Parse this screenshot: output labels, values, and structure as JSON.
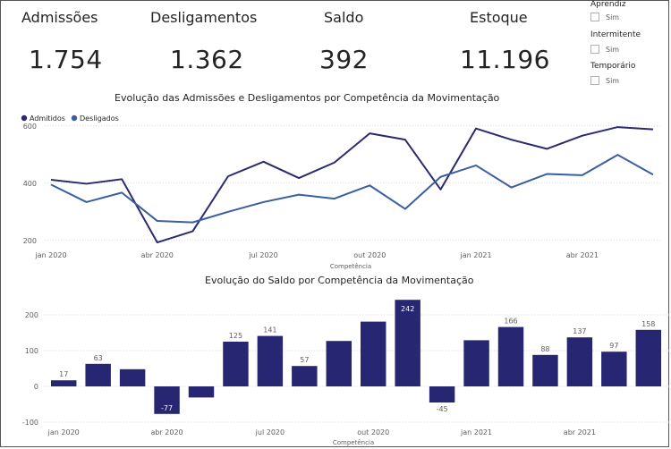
{
  "kpis": [
    {
      "title": "Admissões",
      "value": "1.754"
    },
    {
      "title": "Desligamentos",
      "value": "1.362"
    },
    {
      "title": "Saldo",
      "value": "392"
    },
    {
      "title": "Estoque",
      "value": "11.196"
    }
  ],
  "slicers": [
    {
      "title": "Aprendiz",
      "option": "Sim"
    },
    {
      "title": "Intermitente",
      "option": "Sim"
    },
    {
      "title": "Temporário",
      "option": "Sim"
    }
  ],
  "chart_data": [
    {
      "type": "line",
      "title": "Evolução das Admissões e Desligamentos por Competência da Movimentação",
      "xlabel": "Competência",
      "ylabel": "",
      "x": [
        "jan 2020",
        "fev 2020",
        "mar 2020",
        "abr 2020",
        "mai 2020",
        "jun 2020",
        "jul 2020",
        "ago 2020",
        "set 2020",
        "out 2020",
        "nov 2020",
        "dez 2020",
        "jan 2021",
        "fev 2021",
        "mar 2021",
        "abr 2021",
        "mai 2021",
        "jun 2021"
      ],
      "x_tick_labels": [
        "jan 2020",
        "abr 2020",
        "jul 2020",
        "out 2020",
        "jan 2021",
        "abr 2021"
      ],
      "y_ticks": [
        200,
        400,
        600
      ],
      "ylim": [
        140,
        640
      ],
      "legend_position": "top-left",
      "series": [
        {
          "name": "Admitidos",
          "color": "#2b2a6e",
          "values": [
            412,
            398,
            414,
            193,
            232,
            424,
            475,
            418,
            472,
            574,
            552,
            378,
            591,
            552,
            520,
            566,
            596,
            588
          ]
        },
        {
          "name": "Desligados",
          "color": "#3a5fa0",
          "values": [
            395,
            334,
            367,
            268,
            263,
            300,
            334,
            360,
            346,
            392,
            310,
            422,
            462,
            385,
            432,
            428,
            499,
            430
          ]
        }
      ]
    },
    {
      "type": "bar",
      "title": "Evolução do Saldo por Competência da Movimentação",
      "xlabel": "Competência",
      "ylabel": "",
      "categories": [
        "jan 2020",
        "fev 2020",
        "mar 2020",
        "abr 2020",
        "mai 2020",
        "jun 2020",
        "jul 2020",
        "ago 2020",
        "set 2020",
        "out 2020",
        "nov 2020",
        "dez 2020",
        "jan 2021",
        "fev 2021",
        "mar 2021",
        "abr 2021",
        "mai 2021",
        "jun 2021"
      ],
      "x_tick_labels": [
        "jan 2020",
        "abr 2020",
        "jul 2020",
        "out 2020",
        "jan 2021",
        "abr 2021"
      ],
      "values": [
        17,
        63,
        48,
        -77,
        -31,
        125,
        141,
        57,
        127,
        181,
        242,
        -45,
        129,
        166,
        88,
        137,
        97,
        158
      ],
      "data_labels": [
        "17",
        "63",
        "",
        "-77",
        "",
        "125",
        "141",
        "57",
        "",
        "",
        "242",
        "-45",
        "",
        "166",
        "88",
        "137",
        "97",
        "158"
      ],
      "y_ticks": [
        -100,
        0,
        100,
        200
      ],
      "ylim": [
        -100,
        245
      ],
      "color": "#262672"
    }
  ]
}
